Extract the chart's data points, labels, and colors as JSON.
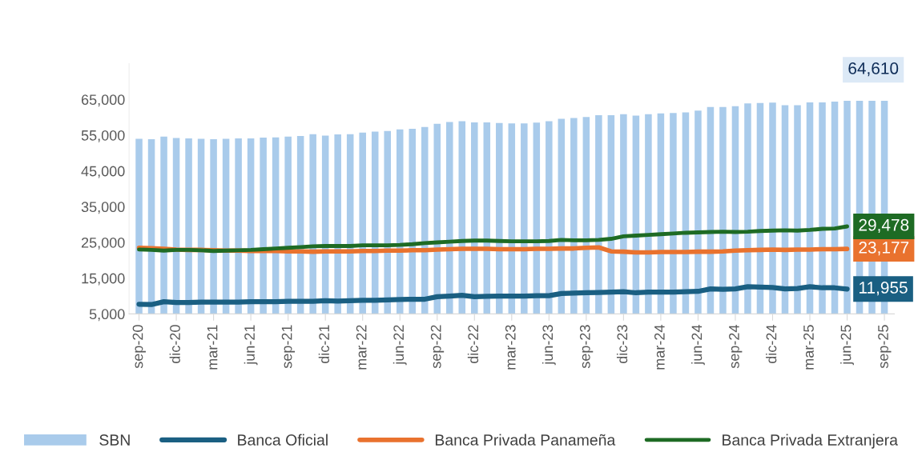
{
  "chart_data": {
    "type": "bar",
    "categories": [
      "sep-20",
      null,
      null,
      "dic-20",
      null,
      null,
      "mar-21",
      null,
      null,
      "jun-21",
      null,
      null,
      "sep-21",
      null,
      null,
      "dic-21",
      null,
      null,
      "mar-22",
      null,
      null,
      "jun-22",
      null,
      null,
      "sep-22",
      null,
      null,
      "dic-22",
      null,
      null,
      "mar-23",
      null,
      null,
      "jun-23",
      null,
      null,
      "sep-23",
      null,
      null,
      "dic-23",
      null,
      null,
      "mar-24",
      null,
      null,
      "jun-24",
      null,
      null,
      "sep-24",
      null,
      null,
      "dic-24",
      null,
      null,
      "mar-25",
      null,
      null,
      "jun-25",
      null,
      null,
      "sep-25"
    ],
    "series": [
      {
        "name": "SBN",
        "color": "#a9cbeb",
        "values": [
          54000,
          53900,
          54600,
          54200,
          54100,
          54000,
          53900,
          54000,
          54100,
          54100,
          54300,
          54400,
          54600,
          54800,
          55300,
          54900,
          55200,
          55300,
          55700,
          56000,
          56200,
          56600,
          56800,
          57300,
          58200,
          58700,
          58900,
          58600,
          58600,
          58400,
          58300,
          58300,
          58500,
          58900,
          59600,
          59800,
          60100,
          60600,
          60600,
          60900,
          60500,
          60900,
          61100,
          61200,
          61400,
          61900,
          62900,
          62900,
          63100,
          63900,
          64000,
          64100,
          63400,
          63400,
          64200,
          64200,
          64400,
          64600,
          64600,
          64600,
          64610
        ],
        "value_labels": [
          null,
          null,
          null,
          null,
          null,
          null,
          null,
          null,
          null,
          null,
          null,
          null,
          null,
          null,
          null,
          null,
          null,
          null,
          null,
          null,
          null,
          null,
          null,
          null,
          null,
          null,
          null,
          null,
          null,
          null,
          null,
          null,
          null,
          null,
          null,
          null,
          null,
          null,
          null,
          null,
          null,
          null,
          null,
          null,
          null,
          null,
          null,
          null,
          null,
          null,
          null,
          null,
          null,
          null,
          null,
          null,
          null,
          null,
          null,
          null,
          "64,610"
        ]
      },
      {
        "name": "Banca Oficial",
        "type": "line",
        "color": "#1a5f82",
        "values": [
          7700,
          7600,
          8400,
          8200,
          8200,
          8300,
          8300,
          8300,
          8300,
          8400,
          8400,
          8400,
          8500,
          8500,
          8500,
          8700,
          8600,
          8700,
          8800,
          8800,
          8900,
          9000,
          9100,
          9100,
          9800,
          10000,
          10200,
          9800,
          9900,
          10000,
          10000,
          10000,
          10100,
          10100,
          10700,
          10800,
          10900,
          11000,
          11100,
          11200,
          10900,
          11100,
          11100,
          11100,
          11200,
          11300,
          12000,
          11900,
          12000,
          12600,
          12500,
          12400,
          12000,
          12100,
          12600,
          12300,
          12300,
          11955,
          null,
          null,
          null
        ],
        "value_labels": [
          null,
          null,
          null,
          null,
          null,
          null,
          null,
          null,
          null,
          null,
          null,
          null,
          null,
          null,
          null,
          null,
          null,
          null,
          null,
          null,
          null,
          null,
          null,
          null,
          null,
          null,
          null,
          null,
          null,
          null,
          null,
          null,
          null,
          null,
          null,
          null,
          null,
          null,
          null,
          null,
          null,
          null,
          null,
          null,
          null,
          null,
          null,
          null,
          null,
          null,
          null,
          null,
          null,
          null,
          null,
          null,
          null,
          "11,955",
          null,
          null,
          null
        ]
      },
      {
        "name": "Banca Privada Panameña",
        "type": "line",
        "color": "#e9722e",
        "values": [
          23500,
          23400,
          23200,
          23000,
          22900,
          22900,
          22800,
          22700,
          22700,
          22600,
          22600,
          22600,
          22500,
          22500,
          22400,
          22500,
          22500,
          22500,
          22600,
          22600,
          22700,
          22700,
          22800,
          22800,
          23000,
          23100,
          23200,
          23200,
          23200,
          23100,
          23100,
          23100,
          23200,
          23200,
          23300,
          23300,
          23500,
          23600,
          22500,
          22400,
          22200,
          22200,
          22300,
          22300,
          22300,
          22400,
          22400,
          22500,
          22700,
          22800,
          22900,
          23000,
          22900,
          23000,
          23000,
          23100,
          23100,
          23177,
          null,
          null,
          null
        ],
        "value_labels": [
          null,
          null,
          null,
          null,
          null,
          null,
          null,
          null,
          null,
          null,
          null,
          null,
          null,
          null,
          null,
          null,
          null,
          null,
          null,
          null,
          null,
          null,
          null,
          null,
          null,
          null,
          null,
          null,
          null,
          null,
          null,
          null,
          null,
          null,
          null,
          null,
          null,
          null,
          null,
          null,
          null,
          null,
          null,
          null,
          null,
          null,
          null,
          null,
          null,
          null,
          null,
          null,
          null,
          null,
          null,
          null,
          null,
          "23,177",
          null,
          null,
          null
        ]
      },
      {
        "name": "Banca Privada Extranjera",
        "type": "line",
        "color": "#1e6b24",
        "values": [
          23000,
          22900,
          22700,
          22900,
          22900,
          22800,
          22600,
          22700,
          22800,
          22900,
          23100,
          23300,
          23500,
          23700,
          23900,
          24000,
          24000,
          24000,
          24200,
          24200,
          24200,
          24300,
          24500,
          24800,
          25000,
          25200,
          25400,
          25500,
          25500,
          25400,
          25300,
          25300,
          25300,
          25400,
          25700,
          25600,
          25600,
          25700,
          26000,
          26700,
          26900,
          27100,
          27300,
          27500,
          27700,
          27800,
          27900,
          28000,
          27900,
          28000,
          28200,
          28300,
          28400,
          28300,
          28500,
          28800,
          28900,
          29478,
          null,
          null,
          null
        ],
        "value_labels": [
          null,
          null,
          null,
          null,
          null,
          null,
          null,
          null,
          null,
          null,
          null,
          null,
          null,
          null,
          null,
          null,
          null,
          null,
          null,
          null,
          null,
          null,
          null,
          null,
          null,
          null,
          null,
          null,
          null,
          null,
          null,
          null,
          null,
          null,
          null,
          null,
          null,
          null,
          null,
          null,
          null,
          null,
          null,
          null,
          null,
          null,
          null,
          null,
          null,
          null,
          null,
          null,
          null,
          null,
          null,
          null,
          null,
          "29,478",
          null,
          null,
          null
        ]
      }
    ],
    "ylim": [
      5000,
      75000
    ],
    "yticks": [
      {
        "value": 5000,
        "label": "5,000"
      },
      {
        "value": 15000,
        "label": "15,000"
      },
      {
        "value": 25000,
        "label": "25,000"
      },
      {
        "value": 35000,
        "label": "35,000"
      },
      {
        "value": 45000,
        "label": "45,000"
      },
      {
        "value": 55000,
        "label": "55,000"
      },
      {
        "value": 65000,
        "label": "65,000"
      }
    ],
    "grid": false,
    "legend": "bottom"
  }
}
